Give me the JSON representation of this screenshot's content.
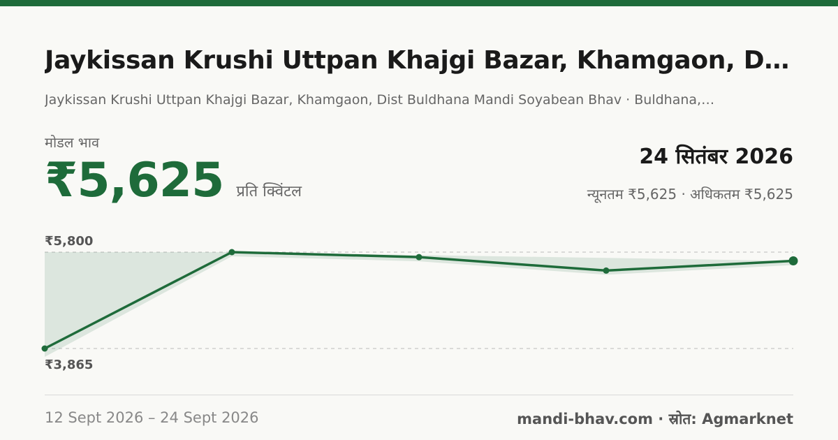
{
  "header": {
    "title": "Jaykissan Krushi Uttpan Khajgi Bazar, Khamgaon, Dist…",
    "subtitle": "Jaykissan Krushi Uttpan Khajgi Bazar, Khamgaon, Dist Buldhana Mandi Soyabean Bhav · Buldhana,…"
  },
  "price_block": {
    "label": "मोडल भाव",
    "value": "₹5,625",
    "unit": "प्रति क्विंटल"
  },
  "date_block": {
    "date": "24 सितंबर 2026",
    "minmax": "न्यूनतम ₹5,625 · अधिकतम ₹5,625"
  },
  "chart_data": {
    "type": "line",
    "x": [
      "12 Sept 2026",
      "",
      "",
      "",
      "24 Sept 2026"
    ],
    "values": [
      3865,
      5800,
      5700,
      5430,
      5625
    ],
    "ylim": [
      3865,
      5800
    ],
    "y_labels": {
      "max": "₹5,800",
      "min": "₹3,865"
    },
    "grid": true,
    "colors": {
      "line": "#1e6b3a",
      "fill": "#1e6b3a"
    }
  },
  "footer": {
    "range": "12 Sept 2026 – 24 Sept 2026",
    "source": "mandi-bhav.com · स्रोत: Agmarknet"
  }
}
